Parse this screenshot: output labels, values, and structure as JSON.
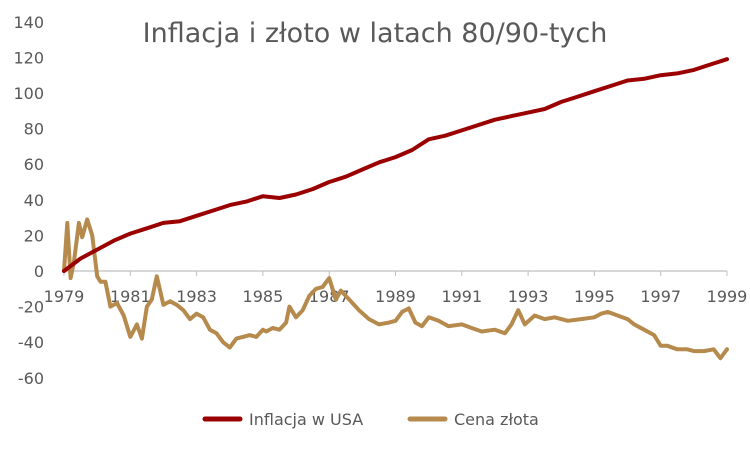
{
  "chart_data": {
    "type": "line",
    "title": "Inflacja i złoto w latach 80/90-tych",
    "xlabel": "",
    "ylabel": "",
    "xlim": [
      1979,
      1999
    ],
    "ylim": [
      -60,
      140
    ],
    "x_ticks": [
      "1979",
      "1981",
      "1983",
      "1985",
      "1987",
      "1989",
      "1991",
      "1993",
      "1995",
      "1997",
      "1999"
    ],
    "y_ticks": [
      "140",
      "120",
      "100",
      "80",
      "60",
      "40",
      "20",
      "0",
      "-20",
      "-40",
      "-60"
    ],
    "grid": false,
    "legend_position": "bottom",
    "colors": {
      "inflation": "#9b0000",
      "gold": "#b58a4c",
      "axis": "#bfbfbf",
      "text": "#595959"
    },
    "series": [
      {
        "name": "Inflacja w USA",
        "x": [
          1979.0,
          1979.5,
          1980.0,
          1980.5,
          1981.0,
          1981.5,
          1982.0,
          1982.5,
          1983.0,
          1983.5,
          1984.0,
          1984.5,
          1985.0,
          1985.5,
          1986.0,
          1986.5,
          1987.0,
          1987.5,
          1988.0,
          1988.5,
          1989.0,
          1989.5,
          1990.0,
          1990.5,
          1991.0,
          1991.5,
          1992.0,
          1992.5,
          1993.0,
          1993.5,
          1994.0,
          1994.5,
          1995.0,
          1995.5,
          1996.0,
          1996.5,
          1997.0,
          1997.5,
          1998.0,
          1998.5,
          1999.0
        ],
        "values": [
          0,
          7,
          12,
          17,
          21,
          24,
          27,
          28,
          31,
          34,
          37,
          39,
          42,
          41,
          43,
          46,
          50,
          53,
          57,
          61,
          64,
          68,
          74,
          76,
          79,
          82,
          85,
          87,
          89,
          91,
          95,
          98,
          101,
          104,
          107,
          108,
          110,
          111,
          113,
          116,
          119
        ]
      },
      {
        "name": "Cena złota",
        "x": [
          1979.0,
          1979.1,
          1979.2,
          1979.3,
          1979.45,
          1979.55,
          1979.7,
          1979.85,
          1980.0,
          1980.1,
          1980.25,
          1980.4,
          1980.6,
          1980.8,
          1981.0,
          1981.2,
          1981.35,
          1981.5,
          1981.65,
          1981.8,
          1982.0,
          1982.1,
          1982.2,
          1982.4,
          1982.6,
          1982.8,
          1983.0,
          1983.2,
          1983.4,
          1983.6,
          1983.8,
          1984.0,
          1984.2,
          1984.4,
          1984.6,
          1984.8,
          1985.0,
          1985.1,
          1985.3,
          1985.5,
          1985.7,
          1985.8,
          1986.0,
          1986.2,
          1986.4,
          1986.6,
          1986.8,
          1987.0,
          1987.2,
          1987.35,
          1987.5,
          1987.7,
          1987.9,
          1988.2,
          1988.5,
          1988.8,
          1989.0,
          1989.2,
          1989.4,
          1989.6,
          1989.8,
          1990.0,
          1990.3,
          1990.6,
          1991.0,
          1991.3,
          1991.6,
          1992.0,
          1992.3,
          1992.5,
          1992.7,
          1992.9,
          1993.2,
          1993.5,
          1993.8,
          1994.2,
          1994.6,
          1995.0,
          1995.2,
          1995.4,
          1995.7,
          1996.0,
          1996.2,
          1996.5,
          1996.8,
          1997.0,
          1997.2,
          1997.5,
          1997.8,
          1998.0,
          1998.3,
          1998.6,
          1998.8,
          1999.0
        ],
        "values": [
          0,
          27,
          -4,
          5,
          27,
          19,
          29,
          20,
          -3,
          -6,
          -6,
          -20,
          -18,
          -25,
          -37,
          -30,
          -38,
          -20,
          -16,
          -3,
          -19,
          -18,
          -17,
          -19,
          -22,
          -27,
          -24,
          -26,
          -33,
          -35,
          -40,
          -43,
          -38,
          -37,
          -36,
          -37,
          -33,
          -34,
          -32,
          -33,
          -29,
          -20,
          -26,
          -22,
          -14,
          -10,
          -9,
          -4,
          -16,
          -11,
          -14,
          -18,
          -22,
          -27,
          -30,
          -29,
          -28,
          -23,
          -21,
          -29,
          -31,
          -26,
          -28,
          -31,
          -30,
          -32,
          -34,
          -33,
          -35,
          -30,
          -22,
          -30,
          -25,
          -27,
          -26,
          -28,
          -27,
          -26,
          -24,
          -23,
          -25,
          -27,
          -30,
          -33,
          -36,
          -42,
          -42,
          -44,
          -44,
          -45,
          -45,
          -44,
          -49,
          -44
        ]
      }
    ]
  }
}
